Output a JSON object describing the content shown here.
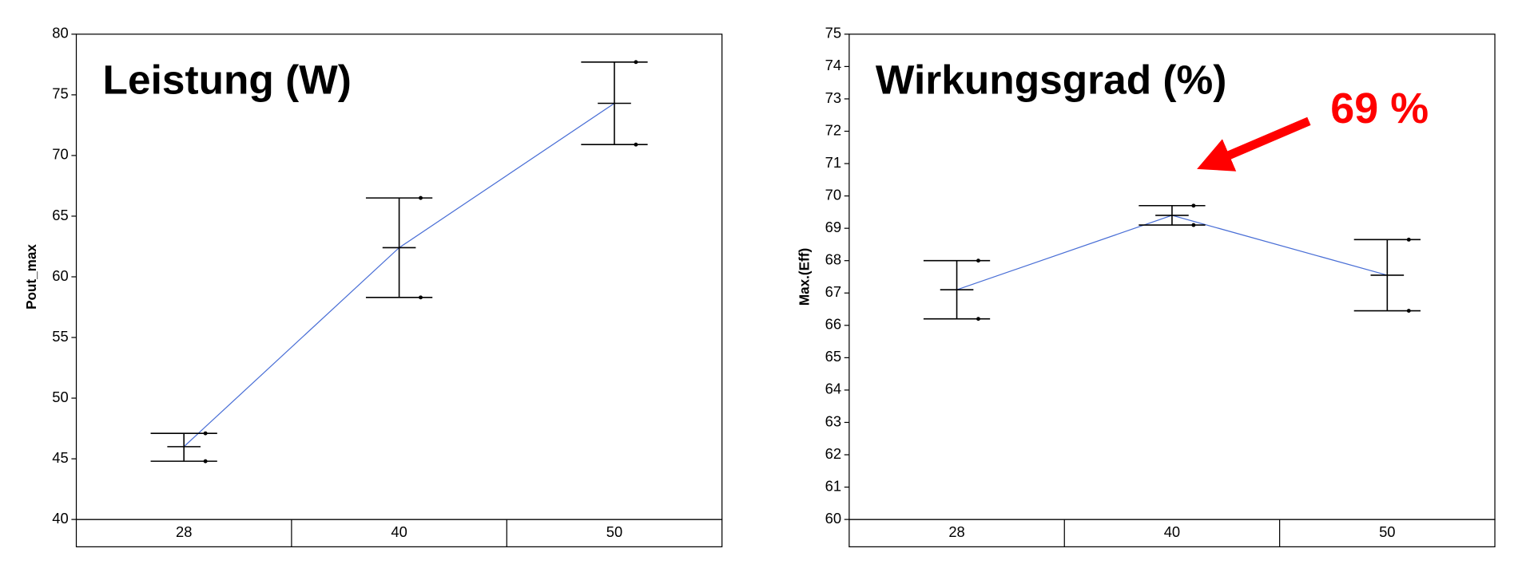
{
  "chart_data": [
    {
      "type": "line",
      "title": "Leistung (W)",
      "y_label": "Pout_max",
      "categories": [
        "28",
        "40",
        "50"
      ],
      "series": [
        {
          "name": "Pout_max",
          "color": "#4a6fd6",
          "values": [
            46.0,
            62.4,
            74.3
          ],
          "lower": [
            44.8,
            58.3,
            70.9
          ],
          "upper": [
            47.1,
            66.5,
            77.7
          ]
        }
      ],
      "ylim": [
        40,
        80
      ],
      "yticks": [
        40,
        45,
        50,
        55,
        60,
        65,
        70,
        75,
        80
      ]
    },
    {
      "type": "line",
      "title": "Wirkungsgrad (%)",
      "y_label": "Max.(Eff)",
      "categories": [
        "28",
        "40",
        "50"
      ],
      "series": [
        {
          "name": "Max.(Eff)",
          "color": "#4a6fd6",
          "values": [
            67.1,
            69.4,
            67.55
          ],
          "lower": [
            66.2,
            69.1,
            66.45
          ],
          "upper": [
            68.0,
            69.7,
            68.65
          ]
        }
      ],
      "ylim": [
        60,
        75
      ],
      "yticks": [
        60,
        61,
        62,
        63,
        64,
        65,
        66,
        67,
        68,
        69,
        70,
        71,
        72,
        73,
        74,
        75
      ],
      "annotation": {
        "text": "69 %",
        "color": "#ff0000"
      }
    }
  ]
}
